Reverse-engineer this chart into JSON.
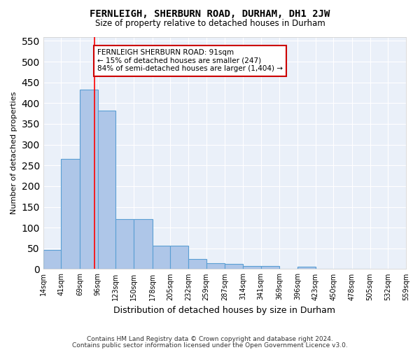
{
  "title": "FERNLEIGH, SHERBURN ROAD, DURHAM, DH1 2JW",
  "subtitle": "Size of property relative to detached houses in Durham",
  "xlabel": "Distribution of detached houses by size in Durham",
  "ylabel": "Number of detached properties",
  "bar_values": [
    47,
    265,
    432,
    382,
    120,
    120,
    57,
    57,
    25,
    15,
    12,
    8,
    8,
    0,
    5,
    0,
    0,
    0
  ],
  "bar_edges": [
    14,
    41,
    69,
    96,
    123,
    150,
    178,
    205,
    232,
    259,
    287,
    314,
    341,
    369,
    396,
    423,
    450,
    478,
    506
  ],
  "bar_color": "#aec6e8",
  "bar_edge_color": "#5a9fd4",
  "red_line_x": 91,
  "annotation_text": "FERNLEIGH SHERBURN ROAD: 91sqm\n← 15% of detached houses are smaller (247)\n84% of semi-detached houses are larger (1,404) →",
  "annotation_box_color": "#ffffff",
  "annotation_box_edge_color": "#cc0000",
  "ylim": [
    0,
    560
  ],
  "yticks": [
    0,
    50,
    100,
    150,
    200,
    250,
    300,
    350,
    400,
    450,
    500,
    550
  ],
  "tick_positions": [
    14,
    41,
    69,
    96,
    123,
    150,
    178,
    205,
    232,
    259,
    287,
    314,
    341,
    369,
    396,
    423,
    450,
    478,
    505,
    532,
    559
  ],
  "tick_labels": [
    "14sqm",
    "41sqm",
    "69sqm",
    "96sqm",
    "123sqm",
    "150sqm",
    "178sqm",
    "205sqm",
    "232sqm",
    "259sqm",
    "287sqm",
    "314sqm",
    "341sqm",
    "369sqm",
    "396sqm",
    "423sqm",
    "450sqm",
    "478sqm",
    "505sqm",
    "532sqm",
    "559sqm"
  ],
  "bg_color": "#eaf0f9",
  "footer_line1": "Contains HM Land Registry data © Crown copyright and database right 2024.",
  "footer_line2": "Contains public sector information licensed under the Open Government Licence v3.0."
}
